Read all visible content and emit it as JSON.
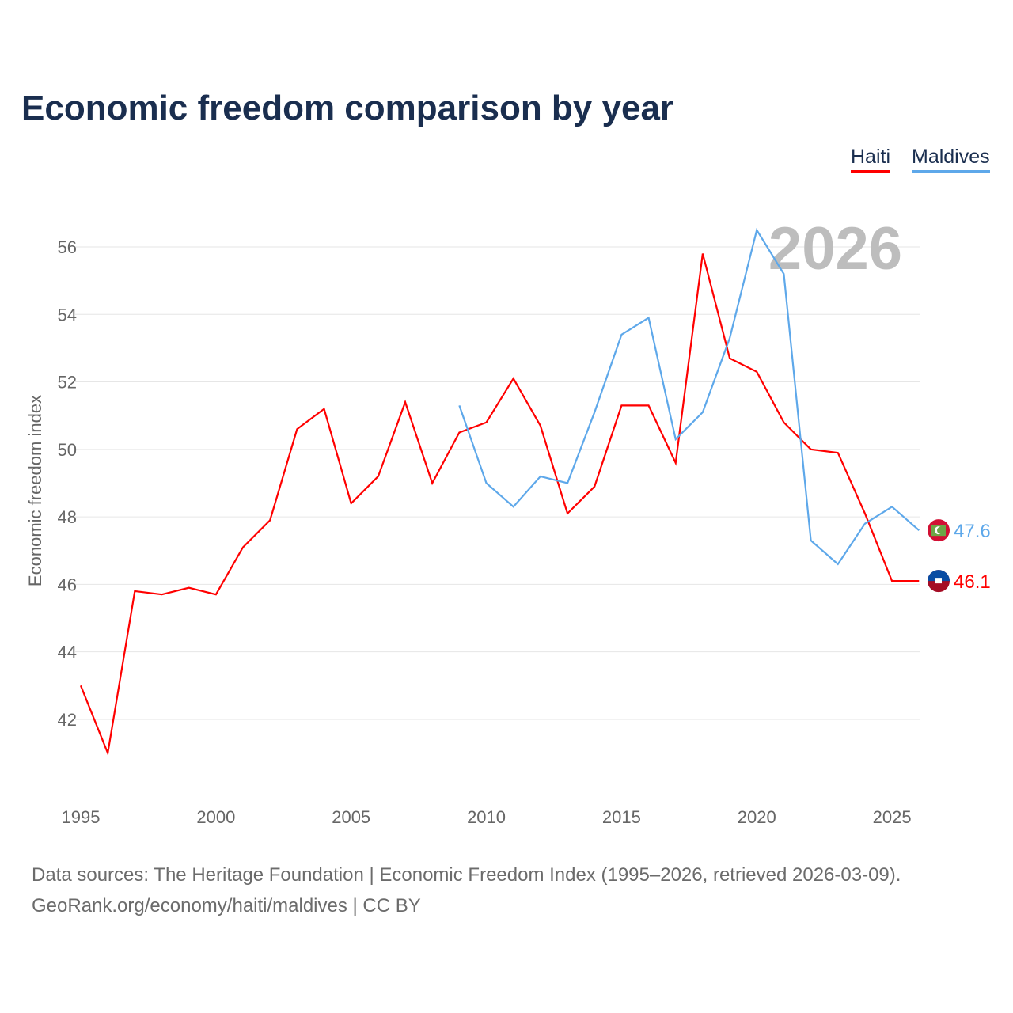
{
  "title": "Economic freedom comparison by year",
  "legend": [
    {
      "name": "Haiti",
      "color": "#ff0000"
    },
    {
      "name": "Maldives",
      "color": "#5ea8ea"
    }
  ],
  "footer": {
    "line1": "Data sources: The Heritage Foundation | Economic Freedom Index (1995–2026, retrieved 2026-03-09).",
    "line2": "GeoRank.org/economy/haiti/maldives | CC BY"
  },
  "chart_data": {
    "type": "line",
    "title": "Economic freedom comparison by year",
    "ylabel": "Economic freedom index",
    "xlabel": "",
    "year_watermark": "2026",
    "xlim": [
      1995,
      2026
    ],
    "ylim": [
      40,
      57
    ],
    "xticks": [
      1995,
      2000,
      2005,
      2010,
      2015,
      2020,
      2025
    ],
    "yticks": [
      42,
      44,
      46,
      48,
      50,
      52,
      54,
      56
    ],
    "series": [
      {
        "name": "Haiti",
        "color": "#ff0000",
        "end_label": "46.1",
        "x": [
          1995,
          1996,
          1997,
          1998,
          1999,
          2000,
          2001,
          2002,
          2003,
          2004,
          2005,
          2006,
          2007,
          2008,
          2009,
          2010,
          2011,
          2012,
          2013,
          2014,
          2015,
          2016,
          2017,
          2018,
          2019,
          2020,
          2021,
          2022,
          2023,
          2024,
          2025,
          2026
        ],
        "values": [
          43.0,
          41.0,
          45.8,
          45.7,
          45.9,
          45.7,
          47.1,
          47.9,
          50.6,
          51.2,
          48.4,
          49.2,
          51.4,
          49.0,
          50.5,
          50.8,
          52.1,
          50.7,
          48.1,
          48.9,
          51.3,
          51.3,
          49.6,
          55.8,
          52.7,
          52.3,
          50.8,
          50.0,
          49.9,
          48.1,
          46.1,
          46.1
        ]
      },
      {
        "name": "Maldives",
        "color": "#5ea8ea",
        "end_label": "47.6",
        "x": [
          2009,
          2010,
          2011,
          2012,
          2013,
          2014,
          2015,
          2016,
          2017,
          2018,
          2019,
          2020,
          2021,
          2022,
          2023,
          2024,
          2025,
          2026
        ],
        "values": [
          51.3,
          49.0,
          48.3,
          49.2,
          49.0,
          51.1,
          53.4,
          53.9,
          50.3,
          51.1,
          53.3,
          56.5,
          55.2,
          47.3,
          46.6,
          47.8,
          48.3,
          47.6
        ]
      }
    ]
  }
}
